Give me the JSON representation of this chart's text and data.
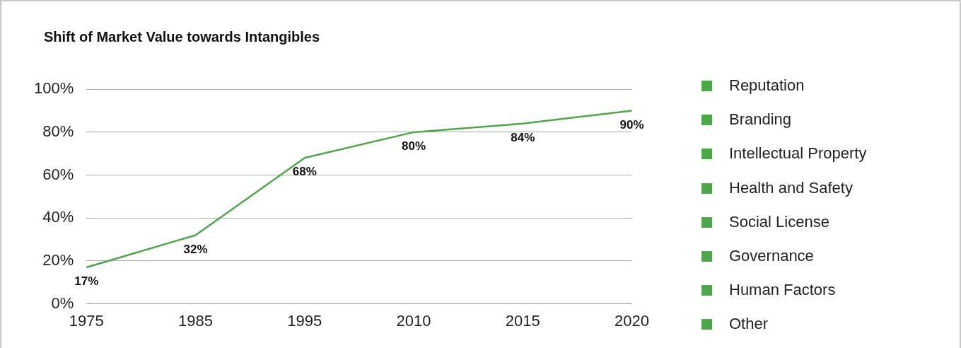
{
  "chart_data": {
    "type": "line",
    "title": "Shift of Market Value towards Intangibles",
    "categories": [
      "1975",
      "1985",
      "1995",
      "2010",
      "2015",
      "2020"
    ],
    "series": [
      {
        "color": "#4ea64a",
        "values": [
          17,
          32,
          68,
          80,
          84,
          90
        ],
        "value_labels": [
          "17%",
          "32%",
          "68%",
          "80%",
          "84%",
          "90%"
        ]
      }
    ],
    "ylim": [
      0,
      100
    ],
    "yticks": [
      {
        "value": 0,
        "label": "0%"
      },
      {
        "value": 20,
        "label": "20%"
      },
      {
        "value": 40,
        "label": "40%"
      },
      {
        "value": 60,
        "label": "60%"
      },
      {
        "value": 80,
        "label": "80%"
      },
      {
        "value": 100,
        "label": "100%"
      }
    ],
    "grid": "y",
    "legend": false,
    "marker": "none",
    "annotations": [
      "Reputation",
      "Branding",
      "Intellectual Property",
      "Health and Safety",
      "Social License",
      "Governance",
      "Human Factors",
      "Other"
    ]
  }
}
